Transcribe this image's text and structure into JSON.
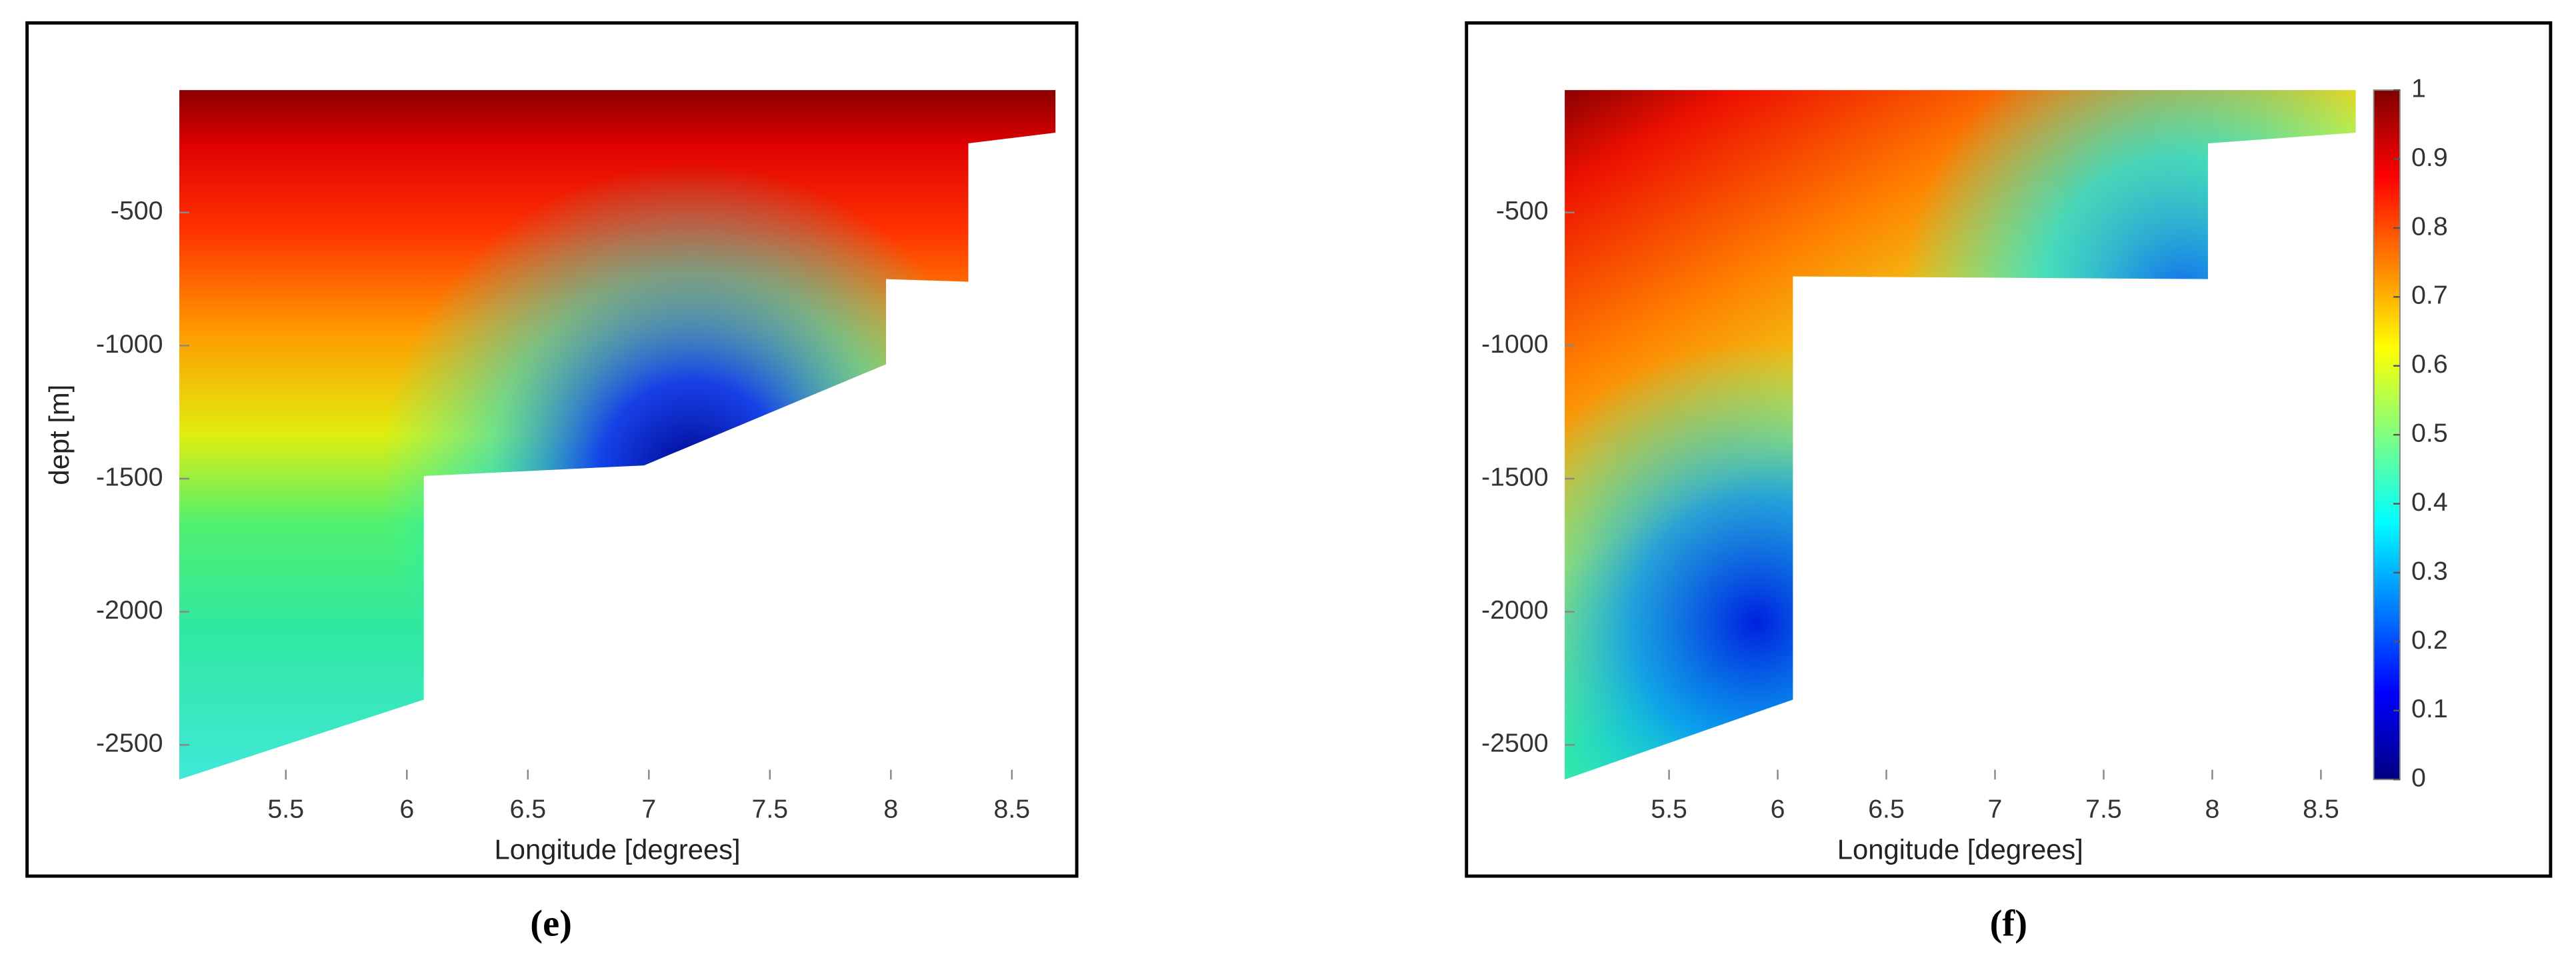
{
  "chart_data": [
    {
      "type": "section",
      "label": "(e)",
      "xlabel": "Longitude [degrees]",
      "ylabel": "dept [m]",
      "xlim": [
        5.06,
        8.68
      ],
      "ylim": [
        -2630,
        -40
      ],
      "xticks": [
        5.5,
        6,
        6.5,
        7,
        7.5,
        8,
        8.5
      ],
      "yticks": [
        -2500,
        -2000,
        -1500,
        -1000,
        -500
      ],
      "x": [
        5.06,
        6.07,
        6.07,
        6.98,
        7.98,
        7.98,
        8.32,
        8.32,
        8.68
      ],
      "values": [
        -2630,
        -2330,
        -1490,
        -1450,
        -1070,
        -750,
        -760,
        -240,
        -200
      ]
    },
    {
      "type": "section",
      "label": "(f)",
      "xlabel": "Longitude [degrees]",
      "xlim": [
        5.02,
        8.66
      ],
      "ylim": [
        -2630,
        -40
      ],
      "xticks": [
        5.5,
        6,
        6.5,
        7,
        7.5,
        8,
        8.5
      ],
      "yticks": [
        -2500,
        -2000,
        -1500,
        -1000,
        -500
      ],
      "x": [
        5.02,
        6.07,
        6.07,
        7.98,
        7.98,
        8.66
      ],
      "values": [
        -2630,
        -2330,
        -740,
        -750,
        -240,
        -200
      ],
      "colorbar": {
        "clim": [
          0,
          1
        ],
        "ticks": [
          0,
          0.1,
          0.2,
          0.3,
          0.4,
          0.5,
          0.6,
          0.7,
          0.8,
          0.9,
          1
        ]
      }
    }
  ]
}
